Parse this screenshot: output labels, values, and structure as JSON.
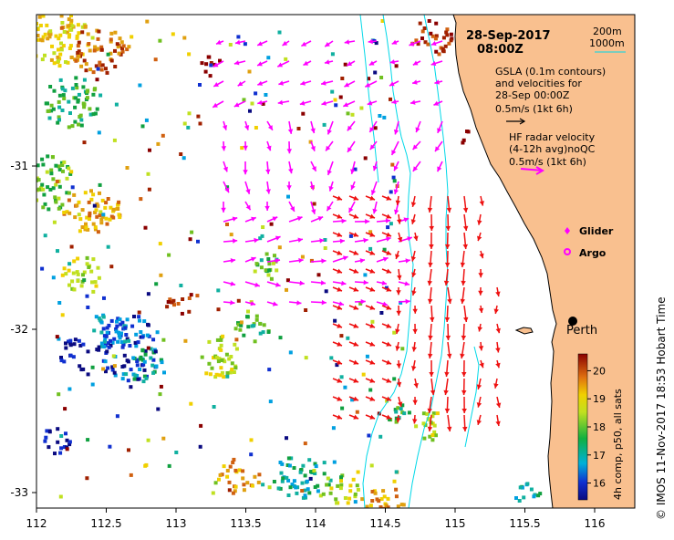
{
  "header": {
    "date": "28-Sep-2017",
    "time": "08:00Z"
  },
  "legend": {
    "depth_200": "200m",
    "depth_1000": "1000m",
    "gsla_line1": "GSLA (0.1m contours)",
    "gsla_line2": "and velocities for",
    "gsla_line3": "28-Sep 00:00Z",
    "gsla_scale": "0.5m/s (1kt 6h)",
    "hf_line1": "HF radar velocity",
    "hf_line2": "(4-12h avg)noQC",
    "hf_scale": "0.5m/s (1kt 6h)",
    "glider": "Glider",
    "argo": "Argo"
  },
  "city": {
    "name": "Perth"
  },
  "colorbar": {
    "title": "4h comp, p50, all sats",
    "ticks": [
      "16",
      "17",
      "18",
      "19",
      "20"
    ],
    "min": 15.4,
    "max": 20.6
  },
  "axes": {
    "x_ticks": [
      "112",
      "112.5",
      "113",
      "113.5",
      "114",
      "114.5",
      "115",
      "115.5",
      "116"
    ],
    "y_ticks": [
      "-31",
      "-32",
      "-33"
    ]
  },
  "credit": "© IMOS 11-Nov-2017 18:53 Hobart Time",
  "colors": {
    "land": "#f9c08f",
    "gsla_arrow": "#ff00ff",
    "hf_arrow": "#ee1111",
    "isobath": "#00d8e8"
  }
}
